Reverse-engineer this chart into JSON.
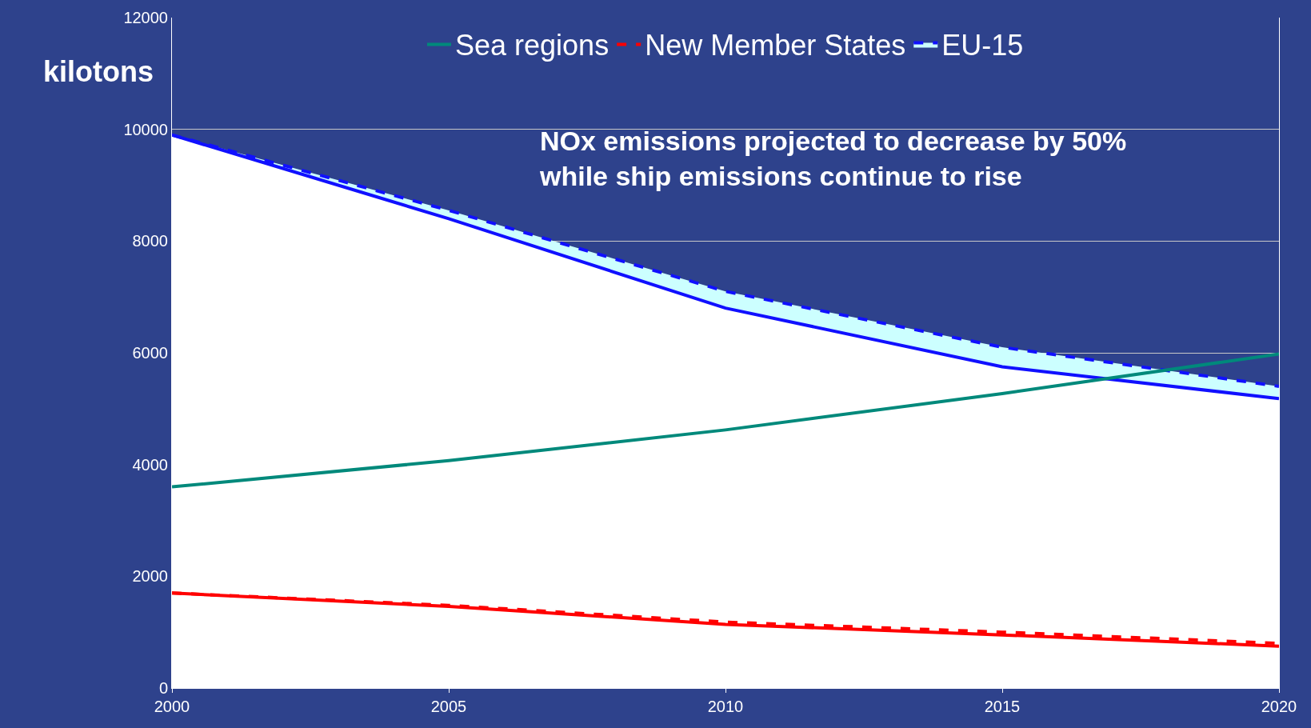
{
  "chart_data": {
    "type": "line",
    "ylabel": "kilotons",
    "x": [
      2000,
      2005,
      2010,
      2015,
      2020
    ],
    "series": [
      {
        "type": "area",
        "color": "#1010ff",
        "line_style": "solid",
        "values": [
          9900,
          8400,
          6800,
          5750,
          5180
        ]
      },
      {
        "type": "area",
        "name": "EU-15",
        "color": "#1010ff",
        "line_style": "dashed",
        "values": [
          9900,
          8550,
          7100,
          6100,
          5400
        ]
      },
      {
        "color": "#ff0000",
        "line_style": "solid",
        "values": [
          1700,
          1460,
          1140,
          950,
          750
        ]
      },
      {
        "name": "New Member States",
        "color": "#ff0000",
        "line_style": "dashed",
        "values": [
          1700,
          1480,
          1180,
          1000,
          800
        ]
      },
      {
        "name": "Sea regions",
        "color": "#00897b",
        "line_style": "solid",
        "values": [
          3600,
          4070,
          4620,
          5270,
          5980
        ]
      }
    ],
    "xlim": [
      2000,
      2020
    ],
    "xticks": [
      2000,
      2005,
      2010,
      2015,
      2020
    ],
    "ylim": [
      0,
      12000
    ],
    "yticks": [
      0,
      2000,
      4000,
      6000,
      8000,
      10000,
      12000
    ],
    "grid": "y",
    "legend": "top",
    "marker": "none",
    "annotations": [
      "NOx emissions projected to decrease by 50%\nwhile ship emissions continue to rise"
    ]
  }
}
